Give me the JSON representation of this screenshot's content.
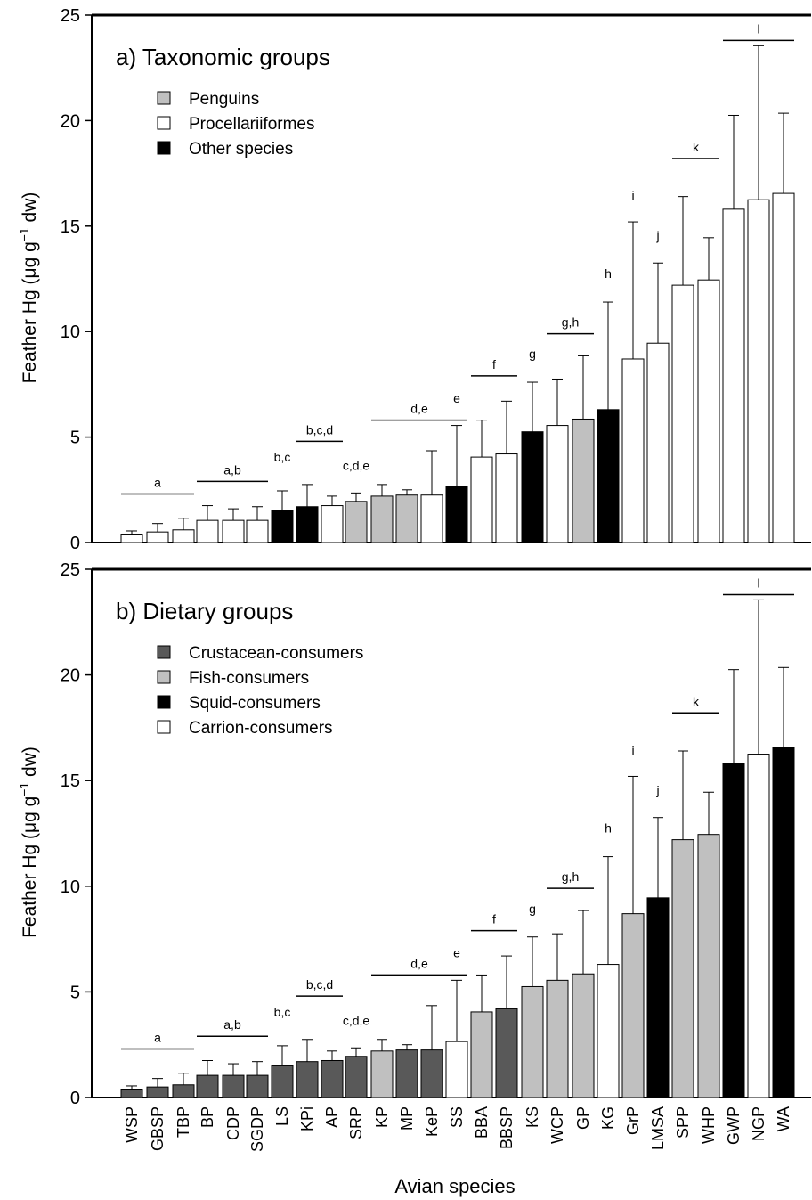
{
  "chart_data": [
    {
      "type": "bar",
      "panel_title": "a) Taxonomic groups",
      "ylabel_main": "Feather Hg (μg g",
      "ylabel_sup": "−1",
      "ylabel_tail": " dw)",
      "ylim": [
        0,
        25
      ],
      "yticks": [
        "0",
        "5",
        "10",
        "15",
        "20",
        "25"
      ],
      "legend_placement": "top-left",
      "legend": [
        {
          "label": "Penguins",
          "color": "#c0c0c0",
          "group": "penguin"
        },
        {
          "label": "Procellariiformes",
          "color": "#ffffff",
          "group": "procellariiform"
        },
        {
          "label": "Other species",
          "color": "#000000",
          "group": "other"
        }
      ],
      "categories": [
        "WSP",
        "GBSP",
        "TBP",
        "BP",
        "CDP",
        "SGDP",
        "LS",
        "KPi",
        "AP",
        "SRP",
        "KP",
        "MP",
        "KeP",
        "SS",
        "BBA",
        "BBSP",
        "KS",
        "WCP",
        "GP",
        "KG",
        "GrP",
        "LMSA",
        "SPP",
        "WHP",
        "GWP",
        "NGP",
        "WA"
      ],
      "values": [
        0.4,
        0.5,
        0.6,
        1.05,
        1.05,
        1.05,
        1.5,
        1.7,
        1.75,
        1.95,
        2.2,
        2.25,
        2.25,
        2.65,
        4.05,
        4.2,
        5.25,
        5.55,
        5.85,
        6.3,
        8.7,
        9.45,
        12.2,
        12.45,
        15.8,
        16.25,
        16.55
      ],
      "errors": [
        0.15,
        0.4,
        0.55,
        0.7,
        0.55,
        0.65,
        0.95,
        1.05,
        0.45,
        0.4,
        0.55,
        0.25,
        2.1,
        2.9,
        1.75,
        2.5,
        2.35,
        2.2,
        3.0,
        5.1,
        6.5,
        3.8,
        4.2,
        2.0,
        4.45,
        7.3,
        3.8
      ],
      "groups": [
        "procellariiform",
        "procellariiform",
        "procellariiform",
        "procellariiform",
        "procellariiform",
        "procellariiform",
        "other",
        "other",
        "procellariiform",
        "penguin",
        "penguin",
        "penguin",
        "procellariiform",
        "other",
        "procellariiform",
        "procellariiform",
        "other",
        "procellariiform",
        "penguin",
        "other",
        "procellariiform",
        "procellariiform",
        "procellariiform",
        "procellariiform",
        "procellariiform",
        "procellariiform",
        "procellariiform"
      ],
      "annotations": [
        {
          "text": "a",
          "from": 0,
          "to": 2,
          "y": 2.3
        },
        {
          "text": "a,b",
          "from": 3,
          "to": 5,
          "y": 2.9
        },
        {
          "text": "b,c",
          "from": 6,
          "to": 6,
          "y": 3.5
        },
        {
          "text": "b,c,d",
          "from": 7,
          "to": 8,
          "y": 4.8
        },
        {
          "text": "c,d,e",
          "from": 9,
          "to": 9,
          "y": 3.1
        },
        {
          "text": "d,e",
          "from": 10,
          "to": 13,
          "y": 5.8
        },
        {
          "text": "e",
          "from": 13,
          "to": 13,
          "y": 6.3
        },
        {
          "text": "f",
          "from": 14,
          "to": 15,
          "y": 7.9
        },
        {
          "text": "g",
          "from": 16,
          "to": 16,
          "y": 8.4
        },
        {
          "text": "g,h",
          "from": 17,
          "to": 18,
          "y": 9.9
        },
        {
          "text": "h",
          "from": 19,
          "to": 19,
          "y": 12.2
        },
        {
          "text": "i",
          "from": 20,
          "to": 20,
          "y": 15.9
        },
        {
          "text": "j",
          "from": 21,
          "to": 21,
          "y": 14.0
        },
        {
          "text": "k",
          "from": 22,
          "to": 23,
          "y": 18.2
        },
        {
          "text": "l",
          "from": 24,
          "to": 26,
          "y": 23.8
        }
      ]
    },
    {
      "type": "bar",
      "panel_title": "b) Dietary groups",
      "ylabel_main": "Feather Hg (μg g",
      "ylabel_sup": "−1",
      "ylabel_tail": " dw)",
      "xlabel": "Avian species",
      "ylim": [
        0,
        25
      ],
      "yticks": [
        "0",
        "5",
        "10",
        "15",
        "20",
        "25"
      ],
      "legend_placement": "top-left",
      "legend": [
        {
          "label": "Crustacean-consumers",
          "color": "#595959",
          "group": "crustacean"
        },
        {
          "label": "Fish-consumers",
          "color": "#c0c0c0",
          "group": "fish"
        },
        {
          "label": "Squid-consumers",
          "color": "#000000",
          "group": "squid"
        },
        {
          "label": "Carrion-consumers",
          "color": "#ffffff",
          "group": "carrion"
        }
      ],
      "categories": [
        "WSP",
        "GBSP",
        "TBP",
        "BP",
        "CDP",
        "SGDP",
        "LS",
        "KPi",
        "AP",
        "SRP",
        "KP",
        "MP",
        "KeP",
        "SS",
        "BBA",
        "BBSP",
        "KS",
        "WCP",
        "GP",
        "KG",
        "GrP",
        "LMSA",
        "SPP",
        "WHP",
        "GWP",
        "NGP",
        "WA"
      ],
      "values": [
        0.4,
        0.5,
        0.6,
        1.05,
        1.05,
        1.05,
        1.5,
        1.7,
        1.75,
        1.95,
        2.2,
        2.25,
        2.25,
        2.65,
        4.05,
        4.2,
        5.25,
        5.55,
        5.85,
        6.3,
        8.7,
        9.45,
        12.2,
        12.45,
        15.8,
        16.25,
        16.55
      ],
      "errors": [
        0.15,
        0.4,
        0.55,
        0.7,
        0.55,
        0.65,
        0.95,
        1.05,
        0.45,
        0.4,
        0.55,
        0.25,
        2.1,
        2.9,
        1.75,
        2.5,
        2.35,
        2.2,
        3.0,
        5.1,
        6.5,
        3.8,
        4.2,
        2.0,
        4.45,
        7.3,
        3.8
      ],
      "groups": [
        "crustacean",
        "crustacean",
        "crustacean",
        "crustacean",
        "crustacean",
        "crustacean",
        "crustacean",
        "crustacean",
        "crustacean",
        "crustacean",
        "fish",
        "crustacean",
        "crustacean",
        "carrion",
        "fish",
        "crustacean",
        "fish",
        "fish",
        "fish",
        "carrion",
        "fish",
        "squid",
        "fish",
        "fish",
        "squid",
        "carrion",
        "squid"
      ],
      "annotations": [
        {
          "text": "a",
          "from": 0,
          "to": 2,
          "y": 2.3
        },
        {
          "text": "a,b",
          "from": 3,
          "to": 5,
          "y": 2.9
        },
        {
          "text": "b,c",
          "from": 6,
          "to": 6,
          "y": 3.5
        },
        {
          "text": "b,c,d",
          "from": 7,
          "to": 8,
          "y": 4.8
        },
        {
          "text": "c,d,e",
          "from": 9,
          "to": 9,
          "y": 3.1
        },
        {
          "text": "d,e",
          "from": 10,
          "to": 13,
          "y": 5.8
        },
        {
          "text": "e",
          "from": 13,
          "to": 13,
          "y": 6.3
        },
        {
          "text": "f",
          "from": 14,
          "to": 15,
          "y": 7.9
        },
        {
          "text": "g",
          "from": 16,
          "to": 16,
          "y": 8.4
        },
        {
          "text": "g,h",
          "from": 17,
          "to": 18,
          "y": 9.9
        },
        {
          "text": "h",
          "from": 19,
          "to": 19,
          "y": 12.2
        },
        {
          "text": "i",
          "from": 20,
          "to": 20,
          "y": 15.9
        },
        {
          "text": "j",
          "from": 21,
          "to": 21,
          "y": 14.0
        },
        {
          "text": "k",
          "from": 22,
          "to": 23,
          "y": 18.2
        },
        {
          "text": "l",
          "from": 24,
          "to": 26,
          "y": 23.8
        }
      ]
    }
  ]
}
